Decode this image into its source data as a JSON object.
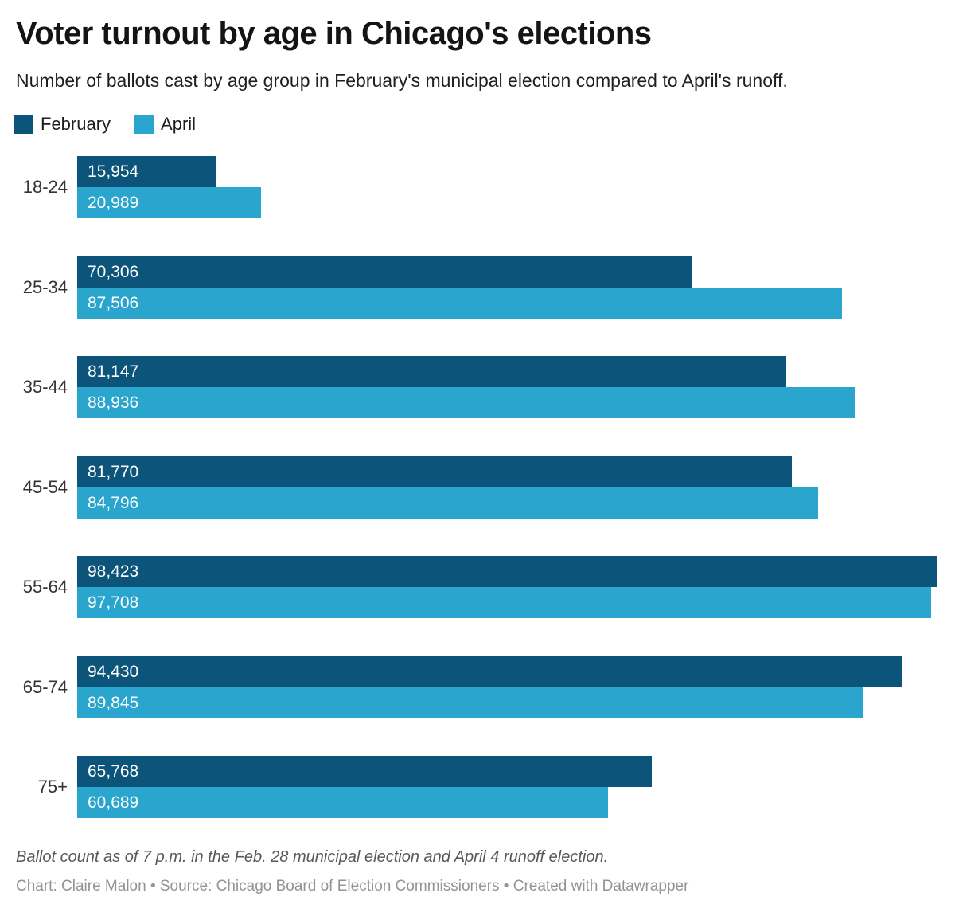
{
  "header": {
    "title": "Voter turnout by age in Chicago's elections",
    "subtitle": "Number of ballots cast by age group in February's municipal election compared to April's runoff."
  },
  "legend": {
    "items": [
      {
        "label": "February",
        "color": "#0d547a"
      },
      {
        "label": "April",
        "color": "#29a5ce"
      }
    ]
  },
  "chart_data": {
    "type": "bar",
    "orientation": "horizontal",
    "title": "Voter turnout by age in Chicago's elections",
    "subtitle": "Number of ballots cast by age group in February's municipal election compared to April's runoff.",
    "categories": [
      "18-24",
      "25-34",
      "35-44",
      "45-54",
      "55-64",
      "65-74",
      "75+"
    ],
    "series": [
      {
        "name": "February",
        "color": "#0d547a",
        "values": [
          15954,
          70306,
          81147,
          81770,
          98423,
          94430,
          65768
        ],
        "labels": [
          "15,954",
          "70,306",
          "81,147",
          "81,770",
          "98,423",
          "94,430",
          "65,768"
        ]
      },
      {
        "name": "April",
        "color": "#29a5ce",
        "values": [
          20989,
          87506,
          88936,
          84796,
          97708,
          89845,
          60689
        ],
        "labels": [
          "20,989",
          "87,506",
          "88,936",
          "84,796",
          "97,708",
          "89,845",
          "60,689"
        ]
      }
    ],
    "xmax": 98423,
    "value_labels": "inside-start",
    "grid": false,
    "legend_position": "top-left"
  },
  "footer": {
    "note": "Ballot count as of 7 p.m. in the Feb. 28 municipal election and April 4 runoff election.",
    "credit": "Chart: Claire Malon • Source: Chicago Board of Election Commissioners • Created with Datawrapper"
  }
}
